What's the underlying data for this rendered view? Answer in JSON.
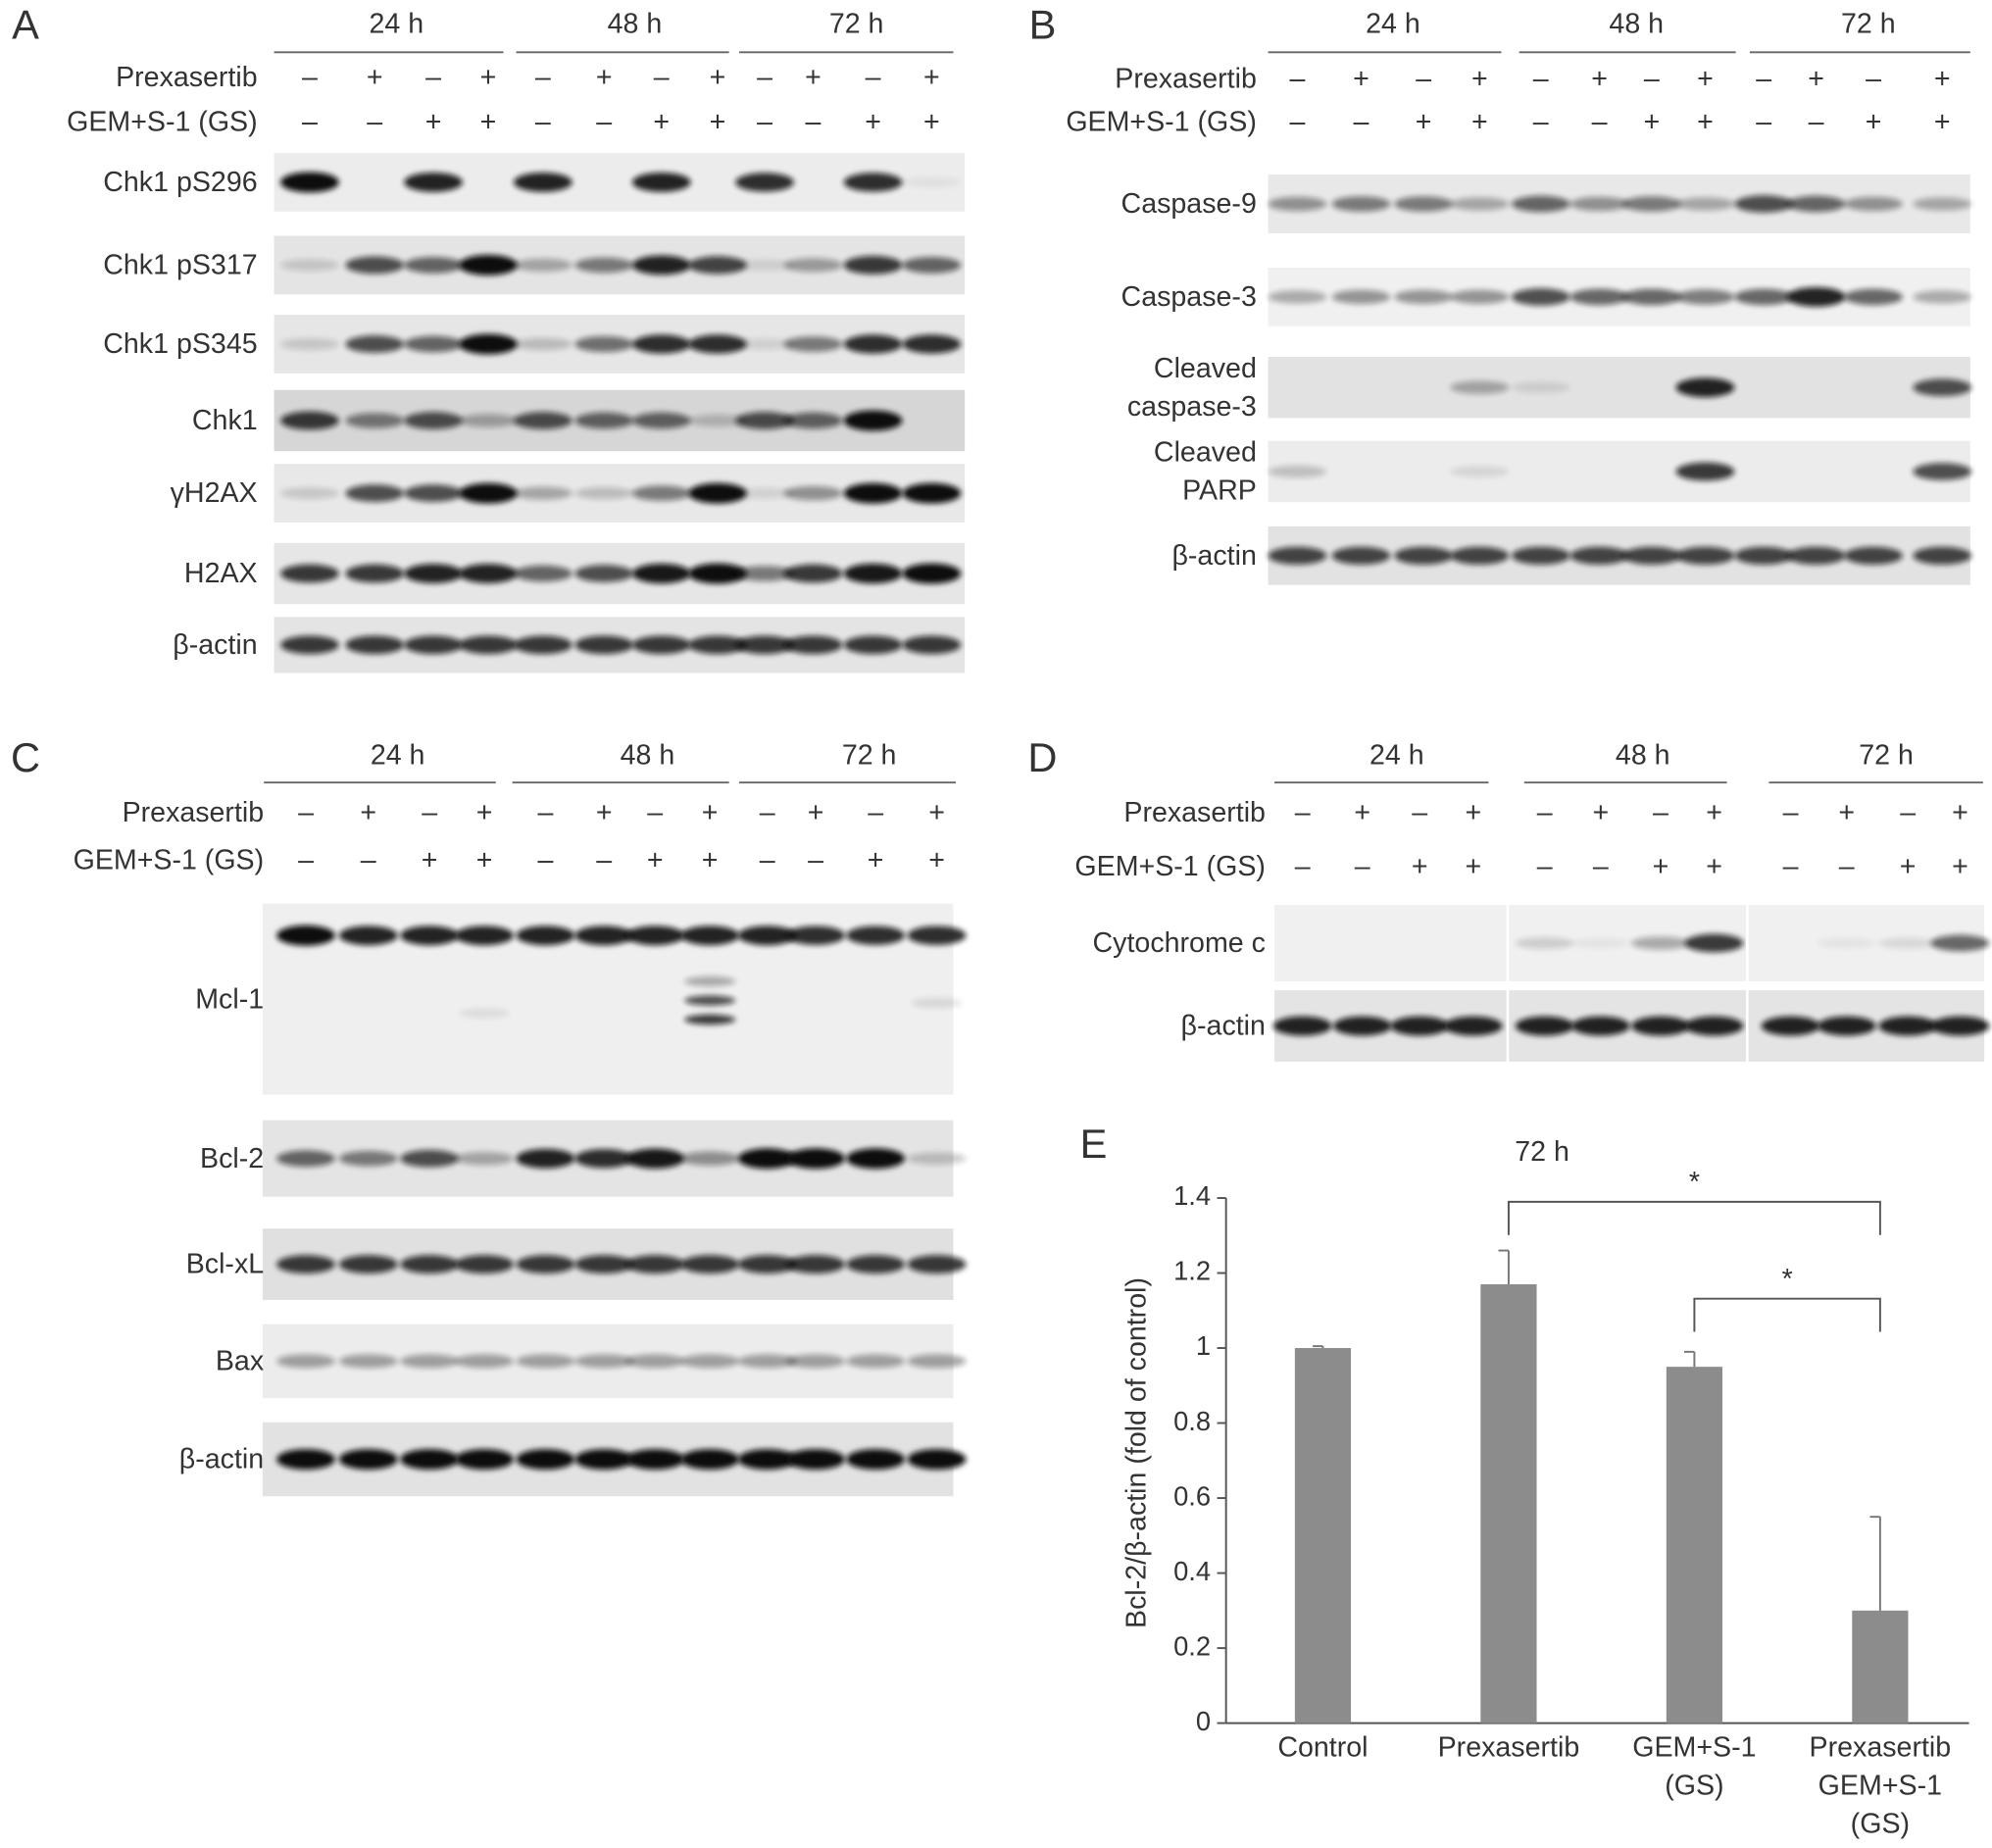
{
  "panels": [
    {
      "label": "A",
      "timepoints": [
        "24 h",
        "48 h",
        "72 h"
      ],
      "treatments": [
        {
          "name": "Prexasertib",
          "signs": [
            "–",
            "+",
            "–",
            "+",
            "–",
            "+",
            "–",
            "+",
            "–",
            "+",
            "–",
            "+"
          ]
        },
        {
          "name": "GEM+S-1 (GS)",
          "signs": [
            "–",
            "–",
            "+",
            "+",
            "–",
            "–",
            "+",
            "+",
            "–",
            "–",
            "+",
            "+"
          ]
        }
      ],
      "blots": [
        "Chk1 pS296",
        "Chk1 pS317",
        "Chk1 pS345",
        "Chk1",
        "γH2AX",
        "H2AX",
        "β-actin"
      ]
    },
    {
      "label": "B",
      "timepoints": [
        "24 h",
        "48 h",
        "72 h"
      ],
      "treatments": [
        {
          "name": "Prexasertib",
          "signs": [
            "–",
            "+",
            "–",
            "+",
            "–",
            "+",
            "–",
            "+",
            "–",
            "+",
            "–",
            "+"
          ]
        },
        {
          "name": "GEM+S-1 (GS)",
          "signs": [
            "–",
            "–",
            "+",
            "+",
            "–",
            "–",
            "+",
            "+",
            "–",
            "–",
            "+",
            "+"
          ]
        }
      ],
      "blots": [
        "Caspase-9",
        "Caspase-3",
        "Cleaved\ncaspase-3",
        "Cleaved\nPARP",
        "β-actin"
      ]
    },
    {
      "label": "C",
      "timepoints": [
        "24 h",
        "48 h",
        "72 h"
      ],
      "treatments": [
        {
          "name": "Prexasertib",
          "signs": [
            "–",
            "+",
            "–",
            "+",
            "–",
            "+",
            "–",
            "+",
            "–",
            "+",
            "–",
            "+"
          ]
        },
        {
          "name": "GEM+S-1 (GS)",
          "signs": [
            "–",
            "–",
            "+",
            "+",
            "–",
            "–",
            "+",
            "+",
            "–",
            "–",
            "+",
            "+"
          ]
        }
      ],
      "blots": [
        "Mcl-1",
        "Bcl-2",
        "Bcl-xL",
        "Bax",
        "β-actin"
      ]
    },
    {
      "label": "D",
      "timepoints": [
        "24 h",
        "48 h",
        "72 h"
      ],
      "treatments": [
        {
          "name": "Prexasertib",
          "signs": [
            "–",
            "+",
            "–",
            "+",
            "–",
            "+",
            "–",
            "+",
            "–",
            "+",
            "–",
            "+"
          ]
        },
        {
          "name": "GEM+S-1 (GS)",
          "signs": [
            "–",
            "–",
            "+",
            "+",
            "–",
            "–",
            "+",
            "+",
            "–",
            "–",
            "+",
            "+"
          ]
        }
      ],
      "blots": [
        "Cytochrome c",
        "β-actin"
      ]
    }
  ],
  "chart_data": {
    "type": "bar",
    "panel_label": "E",
    "title": "72 h",
    "categories": [
      "Control",
      "Prexasertib",
      "GEM+S-1\n(GS)",
      "Prexasertib\nGEM+S-1\n(GS)"
    ],
    "values": [
      1.0,
      1.17,
      0.95,
      0.3
    ],
    "errors": [
      0.005,
      0.09,
      0.04,
      0.25
    ],
    "color": "#8c8c8c",
    "ylim": [
      0,
      1.4
    ],
    "yticks": [
      0,
      0.2,
      0.4,
      0.6,
      0.8,
      1,
      1.2,
      1.4
    ],
    "ylabel": "Bcl-2/β-actin (fold of control)",
    "annotations": [
      {
        "label": "*",
        "from": 1,
        "to": 3
      },
      {
        "label": "*",
        "from": 2,
        "to": 3
      }
    ]
  }
}
